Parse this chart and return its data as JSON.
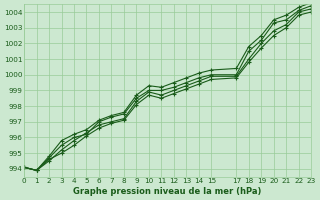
{
  "xlabel": "Graphe pression niveau de la mer (hPa)",
  "bg_color": "#cce8d0",
  "grid_color": "#99cc99",
  "line_color": "#1a5c1a",
  "xlim": [
    0,
    23
  ],
  "ylim": [
    993.5,
    1004.5
  ],
  "xticks": [
    0,
    1,
    2,
    3,
    4,
    5,
    6,
    7,
    8,
    9,
    10,
    11,
    12,
    13,
    14,
    15,
    17,
    18,
    19,
    20,
    21,
    22,
    23
  ],
  "yticks": [
    994,
    995,
    996,
    997,
    998,
    999,
    1000,
    1001,
    1002,
    1003,
    1004
  ],
  "lines": [
    [
      994.1,
      993.9,
      994.7,
      995.5,
      996.0,
      996.2,
      997.0,
      997.3,
      997.5,
      998.5,
      999.0,
      999.0,
      999.2,
      999.5,
      999.8,
      1000.0,
      1000.0,
      1001.5,
      1002.2,
      1003.3,
      1003.5,
      1004.1,
      1004.4
    ],
    [
      994.1,
      993.9,
      994.5,
      995.2,
      995.8,
      996.3,
      996.8,
      997.0,
      997.2,
      998.3,
      998.9,
      998.7,
      999.0,
      999.3,
      999.6,
      999.9,
      999.9,
      1001.0,
      1002.0,
      1002.8,
      1003.2,
      1004.0,
      1004.2
    ],
    [
      994.1,
      993.9,
      994.8,
      995.8,
      996.2,
      996.5,
      997.1,
      997.4,
      997.6,
      998.7,
      999.3,
      999.2,
      999.5,
      999.8,
      1000.1,
      1000.3,
      1000.4,
      1001.8,
      1002.5,
      1003.5,
      1003.8,
      1004.3,
      1004.6
    ],
    [
      994.1,
      993.9,
      994.6,
      995.0,
      995.5,
      996.1,
      996.6,
      996.9,
      997.1,
      998.1,
      998.7,
      998.5,
      998.8,
      999.1,
      999.4,
      999.7,
      999.8,
      1000.8,
      1001.7,
      1002.5,
      1003.0,
      1003.8,
      1004.0
    ]
  ],
  "line_x": [
    0,
    1,
    2,
    3,
    4,
    5,
    6,
    7,
    8,
    9,
    10,
    11,
    12,
    13,
    14,
    15,
    17,
    18,
    19,
    20,
    21,
    22,
    23
  ]
}
